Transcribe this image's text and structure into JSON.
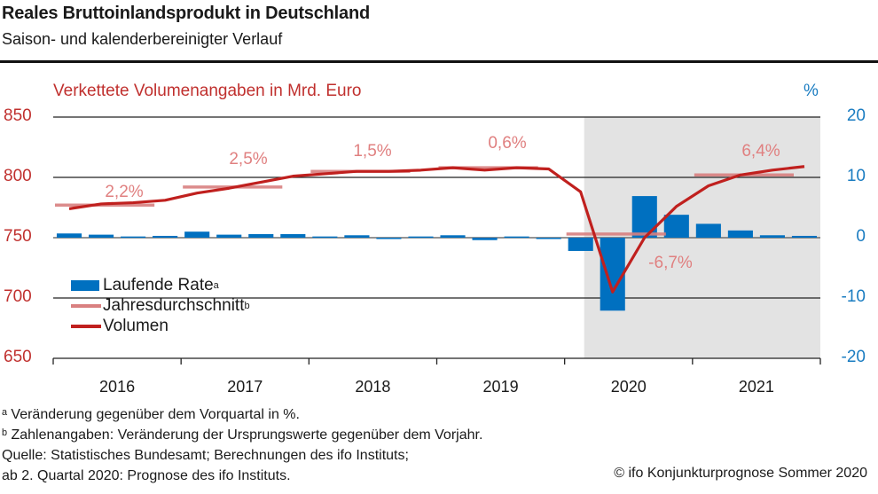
{
  "header": {
    "title": "Reales Bruttoinlandsprodukt in Deutschland",
    "subtitle": "Saison- und kalenderbereinigter Verlauf"
  },
  "axis_captions": {
    "left": "Verkettete Volumenangaben in Mrd. Euro",
    "right": "%"
  },
  "legend": {
    "bars": "Laufende Rate",
    "bars_sup": "a",
    "avg": "Jahresdurchschnitt",
    "avg_sup": "b",
    "volume": "Volumen"
  },
  "footnotes": {
    "a": "ᵃ Veränderung gegenüber dem Vorquartal in %.",
    "b": "ᵇ Zahlenangaben: Veränderung der Ursprungswerte gegenüber dem Vorjahr.",
    "source": "Quelle: Statistisches Bundesamt; Berechnungen des ifo Instituts;",
    "forecast": "ab 2. Quartal 2020: Prognose des ifo Instituts.",
    "copyright": "© ifo Konjunkturprognose Sommer 2020"
  },
  "colors": {
    "bars": "#0070c0",
    "volume": "#c0201e",
    "avg": "#d98080",
    "left_axis": "#c0302e",
    "right_axis": "#1a7cc1",
    "forecast_shade": "#e3e3e3"
  },
  "chart_data": {
    "type": "bar+line",
    "title": "Reales Bruttoinlandsprodukt in Deutschland",
    "subtitle": "Saison- und kalenderbereinigter Verlauf",
    "years": [
      "2016",
      "2017",
      "2018",
      "2019",
      "2020",
      "2021"
    ],
    "quarters_per_year": 4,
    "left_axis": {
      "label": "Verkettete Volumenangaben in Mrd. Euro",
      "ylim": [
        650,
        850
      ],
      "ticks": [
        "650",
        "700",
        "750",
        "800",
        "850"
      ]
    },
    "right_axis": {
      "label": "%",
      "ylim": [
        -20,
        20
      ],
      "ticks": [
        "-20",
        "-10",
        "0",
        "10",
        "20"
      ]
    },
    "forecast_shading_from": "2020 Q2",
    "grid": true,
    "legend_position": "lower-left",
    "series": [
      {
        "name": "Laufende Rate",
        "type": "bar",
        "axis": "right",
        "values": [
          0.7,
          0.5,
          0.2,
          0.3,
          1.0,
          0.5,
          0.6,
          0.6,
          0.2,
          0.4,
          -0.1,
          0.2,
          0.4,
          -0.4,
          0.2,
          -0.1,
          -2.2,
          -12.1,
          6.9,
          3.8,
          2.3,
          1.2,
          0.4,
          0.3
        ]
      },
      {
        "name": "Volumen",
        "type": "line",
        "axis": "left",
        "values": [
          774,
          778,
          779,
          781,
          787,
          791,
          796,
          801,
          803,
          805,
          805,
          806,
          808,
          806,
          808,
          807,
          788,
          705,
          750,
          776,
          793,
          802,
          806,
          809
        ]
      },
      {
        "name": "Jahresdurchschnitt",
        "type": "step",
        "axis": "left",
        "values": [
          777,
          792,
          805,
          808,
          753,
          802
        ],
        "labels": [
          "2,2%",
          "2,5%",
          "1,5%",
          "0,6%",
          "-6,7%",
          "6,4%"
        ]
      }
    ]
  }
}
